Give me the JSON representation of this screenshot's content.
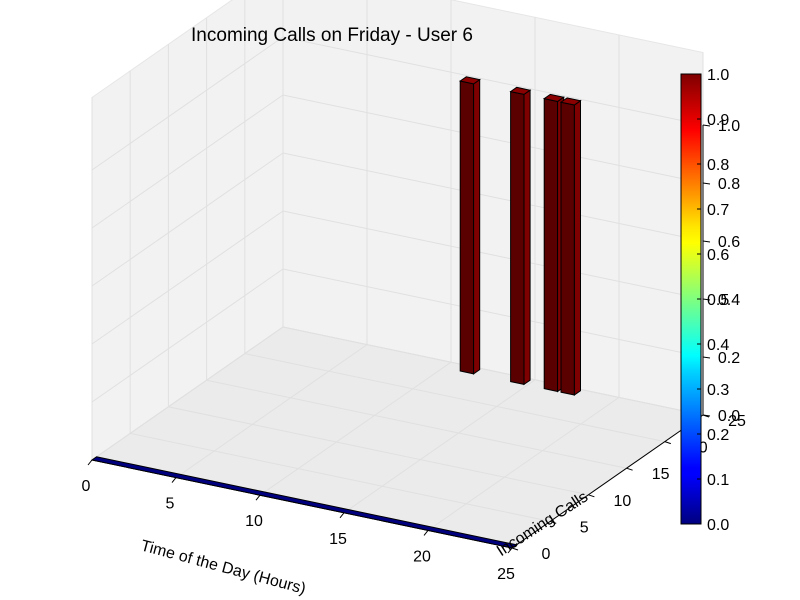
{
  "chart_data": {
    "type": "bar3d",
    "title": "Incoming Calls on Friday - User 6",
    "xlabel": "Time of the Day (Hours)",
    "ylabel": "Incoming Calls",
    "zlabel": "",
    "xlim": [
      0,
      25
    ],
    "ylim": [
      0,
      25
    ],
    "zlim": [
      0,
      1
    ],
    "x_ticks": [
      "0",
      "5",
      "10",
      "15",
      "20",
      "25"
    ],
    "y_ticks": [
      "0",
      "5",
      "10",
      "15",
      "20",
      "25"
    ],
    "z_ticks": [
      "0.0",
      "0.2",
      "0.4",
      "0.6",
      "0.8",
      "1.0"
    ],
    "bars": [
      {
        "x": 11,
        "y": 24,
        "z": 1.0
      },
      {
        "x": 14,
        "y": 24,
        "z": 1.0
      },
      {
        "x": 16,
        "y": 24,
        "z": 1.0
      },
      {
        "x": 17,
        "y": 24,
        "z": 1.0
      }
    ],
    "baseline": {
      "x_from": 0,
      "x_to": 24,
      "y": 0,
      "z": 0
    },
    "colorbar": {
      "ticks": [
        "0.0",
        "0.1",
        "0.2",
        "0.3",
        "0.4",
        "0.5",
        "0.6",
        "0.7",
        "0.8",
        "0.9",
        "1.0"
      ],
      "colormap": "jet",
      "range": [
        0,
        1
      ]
    },
    "grid": true,
    "colors": {
      "bar": "#7f0000",
      "bar_dark": "#5a0000",
      "bar_top": "#8b0000",
      "baseline": "#00007f",
      "pane": "#f2f2f2"
    }
  }
}
